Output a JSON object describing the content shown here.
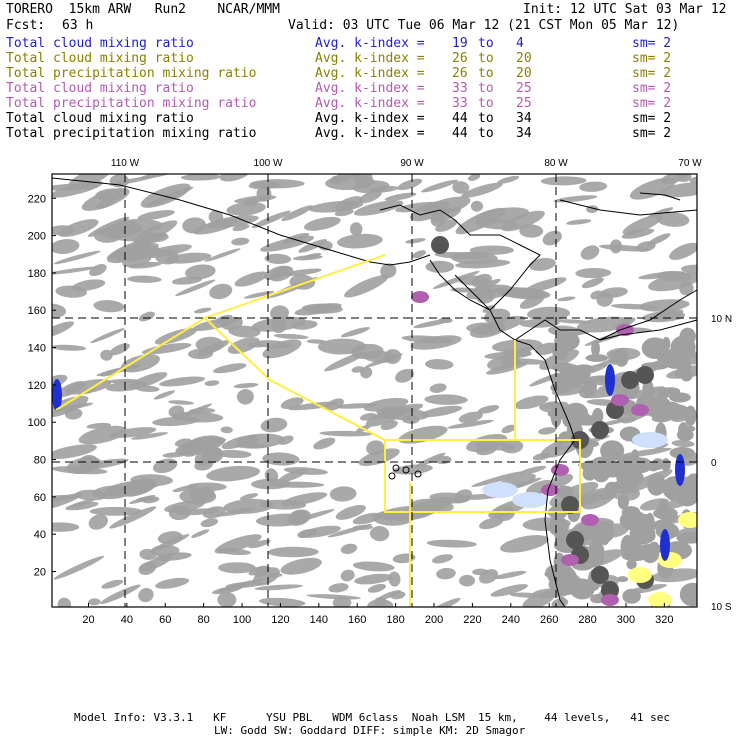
{
  "header": {
    "model": "TORERO  15km ARW   Run2    NCAR/MMM",
    "init": "Init: 12 UTC Sat 03 Mar 12",
    "fcst_label": "Fcst:",
    "fcst_value": "63 h",
    "valid": "Valid: 03 UTC Tue 06 Mar 12 (21 CST Mon 05 Mar 12)"
  },
  "legend": [
    {
      "field": "Total cloud mixing ratio",
      "index": "Avg. k-index =",
      "lo": "19",
      "to": "to",
      "hi": "4",
      "sm": "sm= 2",
      "color": "#1f1fcc"
    },
    {
      "field": "Total cloud mixing ratio",
      "index": "Avg. k-index =",
      "lo": "26",
      "to": "to",
      "hi": "20",
      "sm": "sm= 2",
      "color": "#8c8000"
    },
    {
      "field": "Total precipitation mixing ratio",
      "index": "Avg. k-index =",
      "lo": "26",
      "to": "to",
      "hi": "20",
      "sm": "sm= 2",
      "color": "#8c8000"
    },
    {
      "field": "Total cloud mixing ratio",
      "index": "Avg. k-index =",
      "lo": "33",
      "to": "to",
      "hi": "25",
      "sm": "sm= 2",
      "color": "#b45ab4"
    },
    {
      "field": "Total precipitation mixing ratio",
      "index": "Avg. k-index =",
      "lo": "33",
      "to": "to",
      "hi": "25",
      "sm": "sm= 2",
      "color": "#b45ab4"
    },
    {
      "field": "Total cloud mixing ratio",
      "index": "Avg. k-index =",
      "lo": "44",
      "to": "to",
      "hi": "34",
      "sm": "sm= 2",
      "color": "#000000"
    },
    {
      "field": "Total precipitation mixing ratio",
      "index": "Avg. k-index =",
      "lo": "44",
      "to": "to",
      "hi": "34",
      "sm": "sm= 2",
      "color": "#000000"
    }
  ],
  "map": {
    "lon_labels": [
      "110 W",
      "100 W",
      "90 W",
      "80 W",
      "70 W"
    ],
    "lat_labels": [
      "10 N",
      "0",
      "10 S"
    ],
    "grid_y": [
      20,
      40,
      60,
      80,
      100,
      120,
      140,
      160,
      180,
      200,
      220
    ],
    "grid_x": [
      20,
      40,
      60,
      80,
      100,
      120,
      140,
      160,
      180,
      200,
      220,
      240,
      260,
      280,
      300,
      320
    ],
    "colors": {
      "gray": "#a0a0a0",
      "dark": "#555555",
      "black": "#000000",
      "purple": "#b060b0",
      "yellow": "#ffff80",
      "blue": "#2030d0",
      "lightblue": "#cfe0ff",
      "domain": "#ffee44"
    }
  },
  "footer": {
    "line1": "Model Info: V3.3.1   KF      YSU PBL   WDM 6class  Noah LSM  15 km,    44 levels,   41 sec",
    "line2": "LW: Godd SW: Goddard DIFF: simple KM: 2D Smagor"
  }
}
